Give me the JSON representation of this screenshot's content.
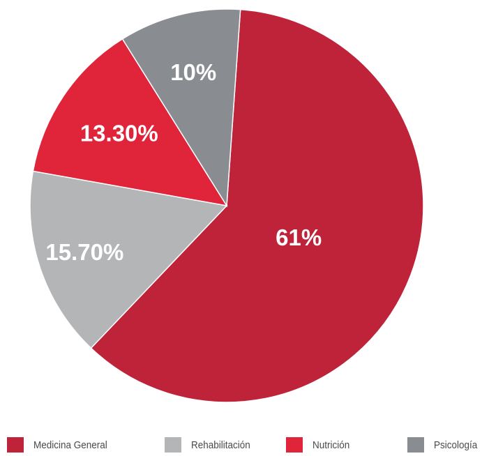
{
  "chart_data": {
    "type": "pie",
    "title": "",
    "categories": [
      "Medicina General",
      "Rehabilitación",
      "Nutrición",
      "Psicología"
    ],
    "values": [
      61,
      15.7,
      13.3,
      10
    ],
    "value_labels": [
      "61%",
      "15.70%",
      "13.30%",
      "10%"
    ],
    "colors": [
      "#be2339",
      "#b3b5b7",
      "#e0253b",
      "#898c91"
    ],
    "legend_position": "bottom"
  }
}
